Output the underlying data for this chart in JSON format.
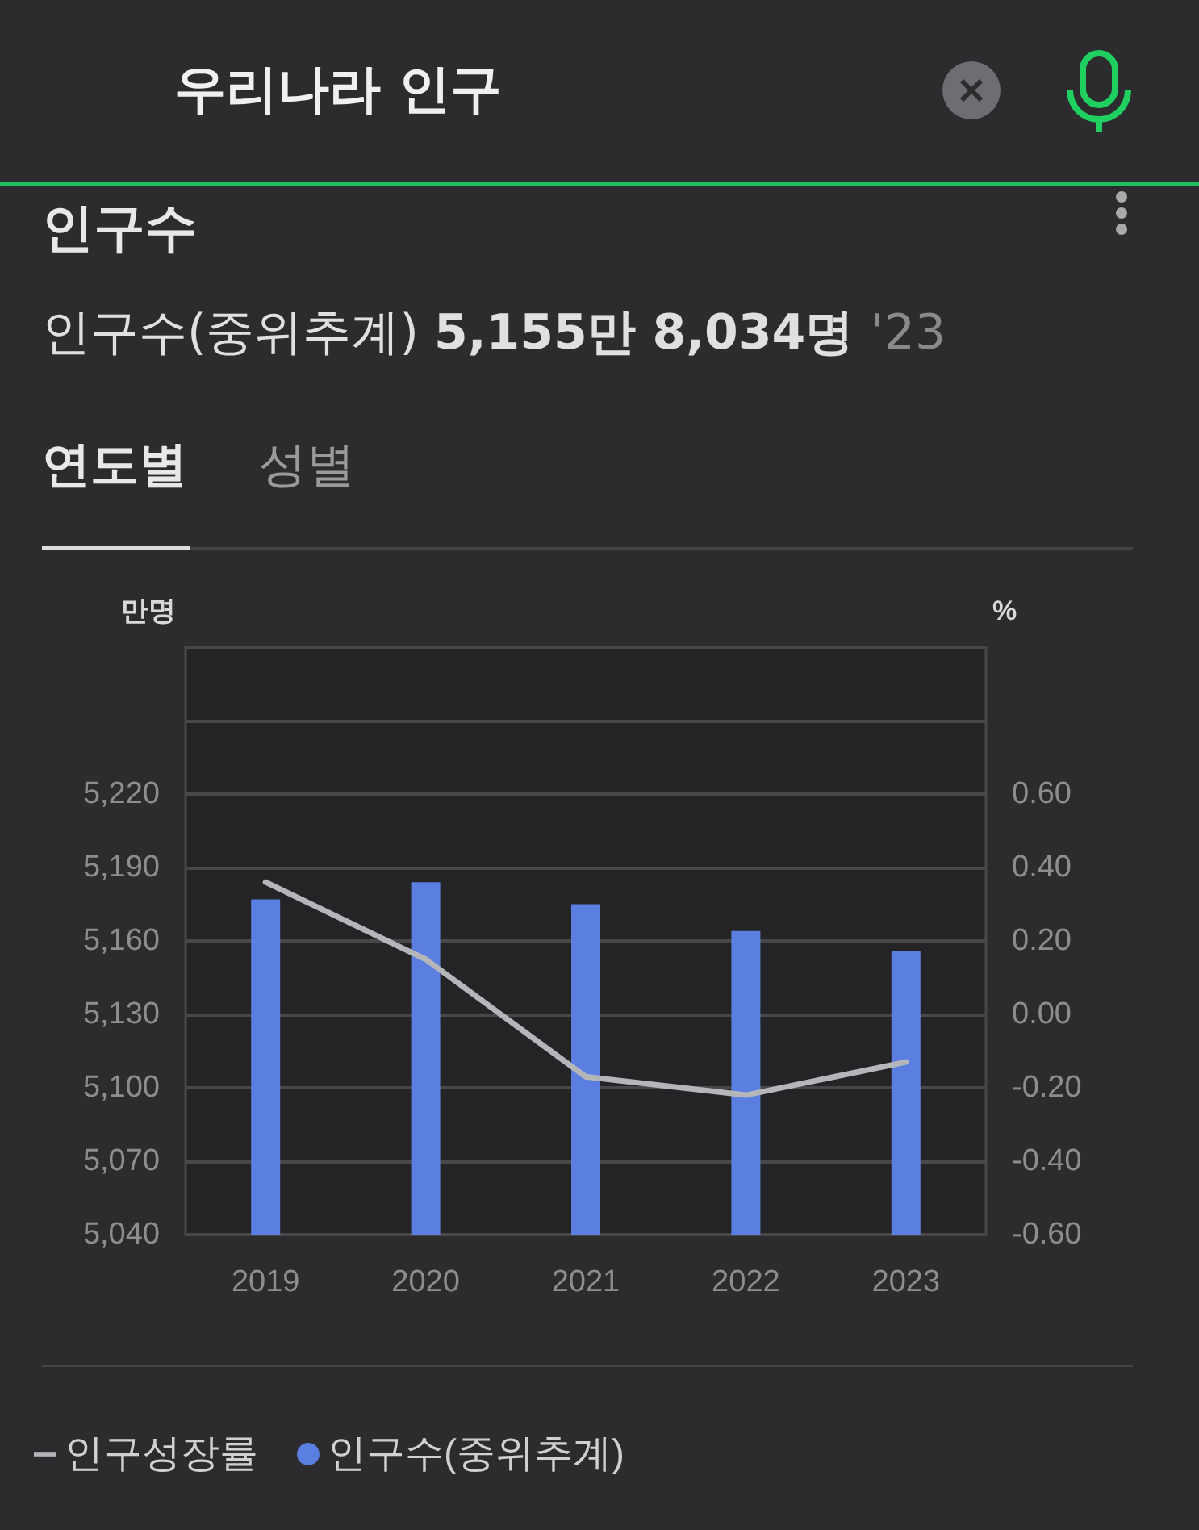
{
  "chart_data": {
    "type": "bar",
    "title": "인구수",
    "subtitle": "인구수(중위추계) 5,155만 8,034명 '23",
    "annotations": [
      "우리나라 인구",
      "연도별",
      "성별"
    ],
    "ylabel": "만명",
    "y2label": "%",
    "categories": [
      "2019",
      "2020",
      "2021",
      "2022",
      "2023"
    ],
    "series": [
      {
        "name": "인구성장률",
        "type": "line",
        "axis": "y2",
        "color": "#b4b6ba",
        "values": [
          0.36,
          0.15,
          -0.17,
          -0.22,
          -0.13
        ]
      },
      {
        "name": "인구수(중위추계)",
        "color": "#5a7fe0",
        "values": [
          5177,
          5184,
          5175,
          5164,
          5156
        ]
      }
    ],
    "ylim": [
      5040,
      5280
    ],
    "yticks": [
      {
        "value": 5040,
        "label": "5,040"
      },
      {
        "value": 5070,
        "label": "5,070"
      },
      {
        "value": 5100,
        "label": "5,100"
      },
      {
        "value": 5130,
        "label": "5,130"
      },
      {
        "value": 5160,
        "label": "5,160"
      },
      {
        "value": 5190,
        "label": "5,190"
      },
      {
        "value": 5220,
        "label": "5,220"
      },
      {
        "value": 5250,
        "label": null
      },
      {
        "value": 5280,
        "label": null
      }
    ],
    "y2lim": [
      -0.6,
      1.0
    ],
    "y2ticks": [
      {
        "value": -0.6,
        "label": "-0.60"
      },
      {
        "value": -0.4,
        "label": "-0.40"
      },
      {
        "value": -0.2,
        "label": "-0.20"
      },
      {
        "value": 0,
        "label": "0.00"
      },
      {
        "value": 0.2,
        "label": "0.20"
      },
      {
        "value": 0.4,
        "label": "0.40"
      },
      {
        "value": 0.6,
        "label": "0.60"
      },
      {
        "value": 0.8,
        "label": null
      },
      {
        "value": 1.0,
        "label": null
      }
    ],
    "grid": "y",
    "legend": "bottom left",
    "marker": "none",
    "line_style": "solid"
  }
}
